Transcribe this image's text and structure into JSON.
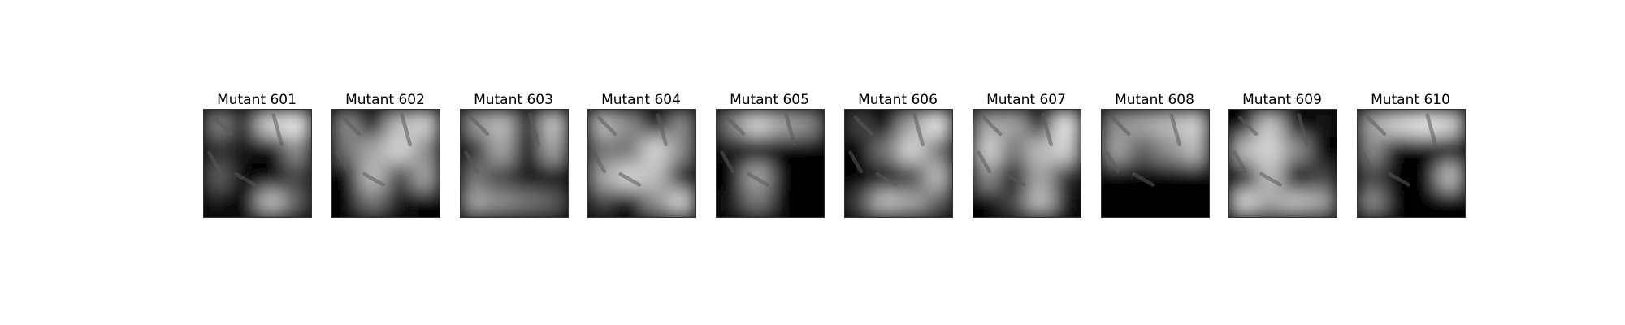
{
  "figure": {
    "background": "#ffffff",
    "panels": [
      {
        "title": "Mutant 601",
        "tiles": [
          [
            0.55,
            0.2,
            0.9,
            1.0
          ],
          [
            0.2,
            0.1,
            0.0,
            0.6
          ],
          [
            0.4,
            0.0,
            0.0,
            0.3
          ],
          [
            0.1,
            0.0,
            0.8,
            0.4
          ]
        ]
      },
      {
        "title": "Mutant 602",
        "tiles": [
          [
            0.6,
            0.1,
            0.8,
            0.9
          ],
          [
            0.5,
            0.7,
            0.9,
            0.6
          ],
          [
            0.0,
            0.8,
            0.3,
            0.7
          ],
          [
            0.0,
            0.5,
            0.1,
            0.0
          ]
        ]
      },
      {
        "title": "Mutant 603",
        "tiles": [
          [
            0.65,
            0.8,
            0.1,
            0.85
          ],
          [
            0.2,
            0.7,
            0.0,
            0.7
          ],
          [
            0.5,
            0.3,
            0.1,
            0.1
          ],
          [
            0.7,
            0.6,
            0.5,
            0.4
          ]
        ]
      },
      {
        "title": "Mutant 604",
        "tiles": [
          [
            0.8,
            0.6,
            0.0,
            0.6
          ],
          [
            0.5,
            0.5,
            0.9,
            0.6
          ],
          [
            0.7,
            0.9,
            0.8,
            0.2
          ],
          [
            0.3,
            0.0,
            0.6,
            0.9
          ]
        ]
      },
      {
        "title": "Mutant 605",
        "tiles": [
          [
            0.55,
            0.9,
            0.7,
            0.6
          ],
          [
            0.1,
            0.0,
            0.0,
            0.0
          ],
          [
            0.0,
            0.7,
            0.0,
            0.0
          ],
          [
            0.1,
            0.5,
            0.0,
            0.0
          ]
        ]
      },
      {
        "title": "Mutant 606",
        "tiles": [
          [
            0.3,
            0.0,
            0.7,
            1.0
          ],
          [
            0.0,
            0.5,
            0.9,
            0.5
          ],
          [
            0.0,
            0.1,
            0.3,
            0.8
          ],
          [
            0.3,
            0.8,
            0.7,
            0.4
          ]
        ]
      },
      {
        "title": "Mutant 607",
        "tiles": [
          [
            0.7,
            0.7,
            0.1,
            1.0
          ],
          [
            0.9,
            0.5,
            0.8,
            0.9
          ],
          [
            0.6,
            0.1,
            0.7,
            0.2
          ],
          [
            0.0,
            0.3,
            0.8,
            0.1
          ]
        ]
      },
      {
        "title": "Mutant 608",
        "tiles": [
          [
            0.6,
            0.7,
            0.8,
            0.9
          ],
          [
            0.7,
            0.4,
            0.6,
            0.8
          ],
          [
            0.0,
            0.0,
            0.0,
            0.0
          ],
          [
            0.0,
            0.0,
            0.0,
            0.0
          ]
        ]
      },
      {
        "title": "Mutant 609",
        "tiles": [
          [
            0.0,
            0.85,
            0.0,
            0.1
          ],
          [
            0.8,
            0.9,
            0.6,
            0.0
          ],
          [
            0.0,
            0.8,
            0.0,
            0.3
          ],
          [
            0.9,
            0.7,
            0.8,
            0.7
          ]
        ]
      },
      {
        "title": "Mutant 610",
        "tiles": [
          [
            0.7,
            0.9,
            1.0,
            0.9
          ],
          [
            0.6,
            0.0,
            0.0,
            0.0
          ],
          [
            0.3,
            0.0,
            0.0,
            0.8
          ],
          [
            0.6,
            0.0,
            0.0,
            0.0
          ]
        ]
      }
    ]
  }
}
